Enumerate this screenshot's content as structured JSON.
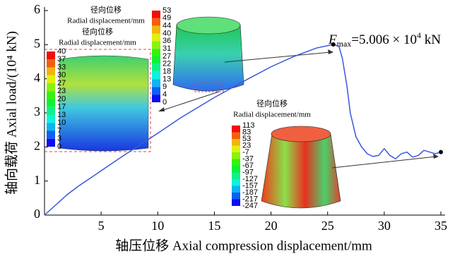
{
  "chart_data": {
    "type": "line",
    "x_label": "轴压位移 Axial compression displacement/mm",
    "y_label": "轴向载荷 Axial load/(10⁴ kN)",
    "x": [
      0,
      1,
      2,
      3,
      5,
      7,
      10,
      12,
      15,
      18,
      20,
      22,
      24,
      25.5,
      26,
      26.3,
      26.7,
      27,
      27.5,
      28,
      28.5,
      29,
      29.5,
      30,
      30.5,
      31,
      31.5,
      32,
      32.5,
      33,
      33.5,
      34,
      34.5,
      35
    ],
    "values": [
      0,
      0.3,
      0.6,
      0.85,
      1.3,
      1.75,
      2.4,
      2.85,
      3.45,
      4.0,
      4.35,
      4.65,
      4.9,
      5.006,
      4.95,
      4.6,
      3.8,
      3.0,
      2.3,
      2.0,
      1.8,
      1.72,
      1.75,
      1.95,
      1.75,
      1.65,
      1.8,
      1.85,
      1.7,
      1.75,
      1.9,
      1.85,
      1.8,
      1.85
    ],
    "color": "#3b55e0",
    "xlim": [
      0,
      35
    ],
    "ylim": [
      0,
      6
    ],
    "xticks": [
      5,
      10,
      15,
      20,
      25,
      30,
      35
    ],
    "yticks": [
      0,
      1,
      2,
      3,
      4,
      5,
      6
    ],
    "annotation": {
      "symbol": "F",
      "subscript": "max",
      "text": "=5.006 × 10",
      "superscript": "4",
      "unit": " kN"
    },
    "insets": [
      {
        "title_cn": "径向位移",
        "title_en": "Radial displacement/mm",
        "levels": [
          40,
          37,
          33,
          30,
          27,
          23,
          20,
          17,
          13,
          10,
          7,
          3,
          0
        ]
      },
      {
        "title_cn": "径向位移",
        "title_en": "Radial displacement/mm",
        "levels": [
          53,
          49,
          44,
          40,
          36,
          31,
          27,
          22,
          18,
          13,
          9,
          4,
          0
        ]
      },
      {
        "title_cn": "径向位移",
        "title_en": "Radial displacement/mm",
        "levels": [
          113,
          83,
          53,
          23,
          -7,
          -37,
          -67,
          -97,
          -127,
          -157,
          -187,
          -217,
          -247
        ]
      }
    ]
  }
}
